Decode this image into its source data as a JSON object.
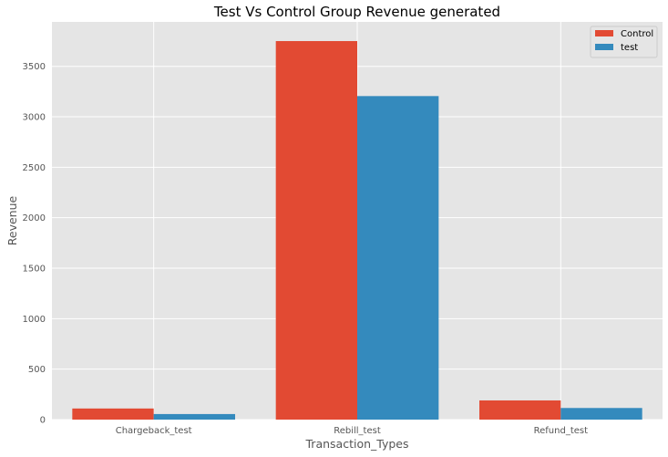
{
  "chart_data": {
    "type": "bar",
    "title": "Test Vs Control Group Revenue generated",
    "xlabel": "Transaction_Types",
    "ylabel": "Revenue",
    "categories": [
      "Chargeback_test",
      "Rebill_test",
      "Refund_test"
    ],
    "series": [
      {
        "name": "Control",
        "values": [
          110,
          3750,
          190
        ],
        "color": "#E24A33"
      },
      {
        "name": "test",
        "values": [
          55,
          3205,
          115
        ],
        "color": "#348ABD"
      }
    ],
    "ylim": [
      0,
      3940
    ],
    "yticks": [
      0,
      500,
      1000,
      1500,
      2000,
      2500,
      3000,
      3500
    ],
    "grid": true,
    "legend_position": "top-right",
    "style": {
      "plot_background": "#E5E5E5",
      "grid_color": "#FFFFFF"
    }
  }
}
